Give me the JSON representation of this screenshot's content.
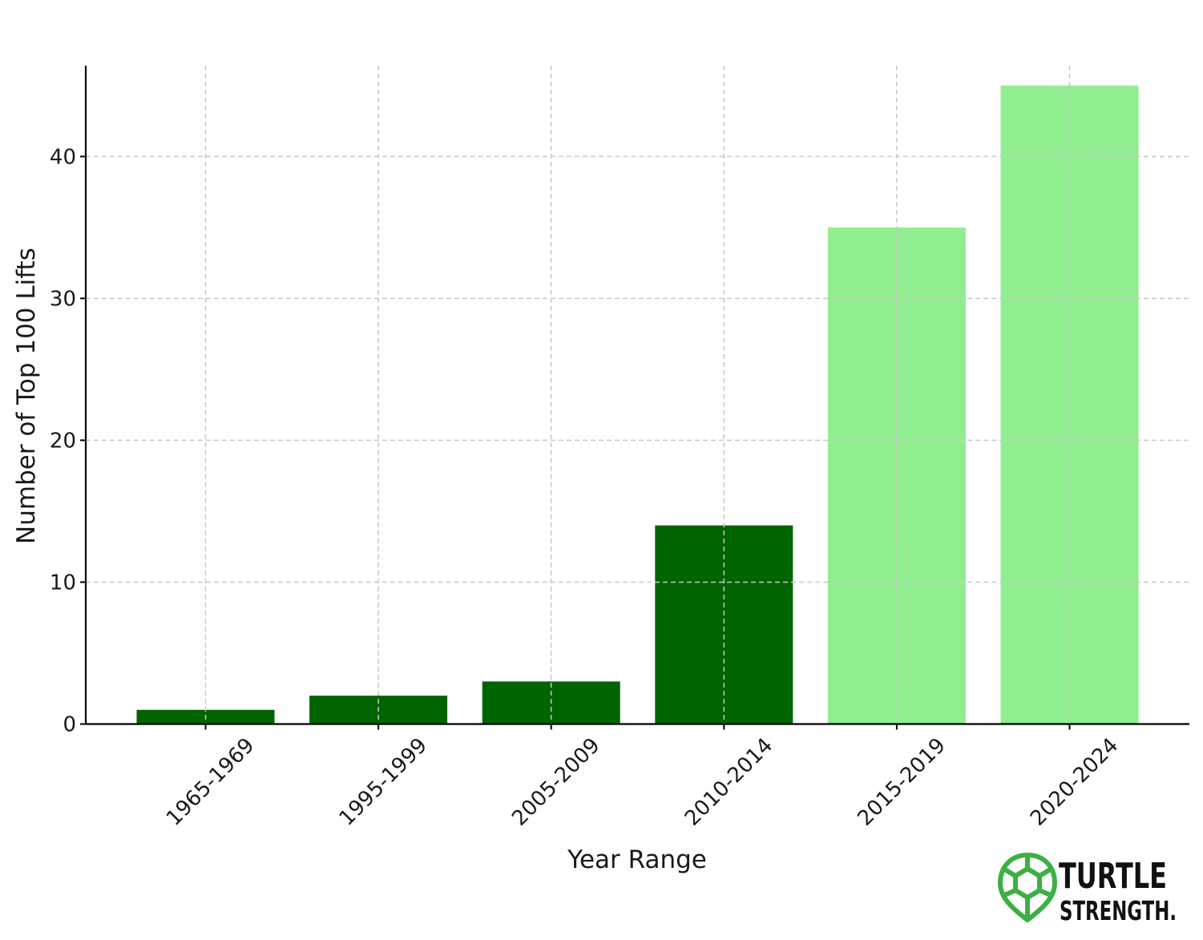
{
  "chart_data": {
    "type": "bar",
    "title": "",
    "xlabel": "Year Range",
    "ylabel": "Number of Top 100 Lifts",
    "categories": [
      "1965-1969",
      "1995-1999",
      "2005-2009",
      "2010-2014",
      "2015-2019",
      "2020-2024"
    ],
    "values": [
      1,
      2,
      3,
      14,
      35,
      45
    ],
    "bar_colors": [
      "#006400",
      "#006400",
      "#006400",
      "#006400",
      "#90ee90",
      "#90ee90"
    ],
    "ylim": [
      0,
      46.4
    ],
    "yticks": [
      0,
      10,
      20,
      30,
      40
    ],
    "grid": true,
    "legend": null
  },
  "logo": {
    "line1": "TURTLE",
    "line2": "STRENGTH.",
    "icon": "turtle-shell-icon",
    "icon_color": "#3cb043"
  }
}
